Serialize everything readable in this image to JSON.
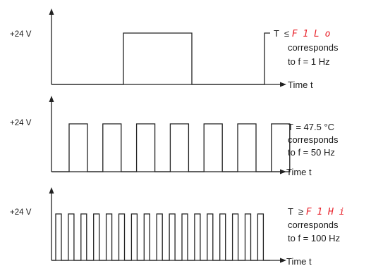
{
  "panels": [
    {
      "id": "panel-1hz",
      "voltage_label": "+24 V",
      "time_label": "Time t",
      "condition_prefix": "T  ≤ ",
      "condition_code": "F 1 L o",
      "condition_code_color": "#e8212a",
      "line2": "corresponds",
      "line3": "to f = 1 Hz",
      "frequency_hz": 1,
      "pulse_count": 1
    },
    {
      "id": "panel-50hz",
      "voltage_label": "+24 V",
      "time_label": "Time t",
      "condition_prefix": "T = 47.5 °C",
      "condition_code": "",
      "condition_code_color": "#e8212a",
      "line2": "corresponds",
      "line3": "to f = 50 Hz",
      "frequency_hz": 50,
      "pulse_count": 7
    },
    {
      "id": "panel-100hz",
      "voltage_label": "+24 V",
      "time_label": "Time t",
      "condition_prefix": "T  ≥ ",
      "condition_code": "F 1 H i",
      "condition_code_color": "#e8212a",
      "line2": "corresponds",
      "line3": "to f = 100 Hz",
      "frequency_hz": 100,
      "pulse_count": 17
    }
  ],
  "colors": {
    "line": "#222222",
    "text": "#1a1a1a",
    "accent": "#e8212a"
  }
}
